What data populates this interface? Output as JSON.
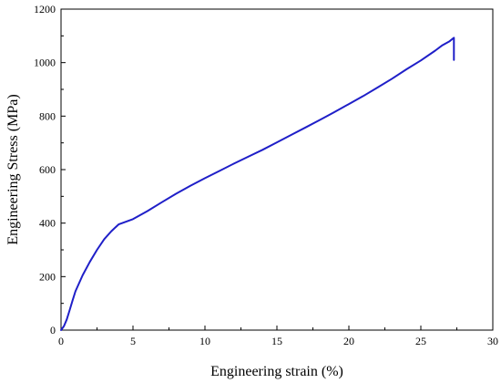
{
  "chart_data": {
    "type": "line",
    "title": "",
    "xlabel": "Engineering strain (%)",
    "ylabel": "Engineering Stress (MPa)",
    "xlim": [
      0,
      30
    ],
    "ylim": [
      0,
      1200
    ],
    "x_ticks": [
      0,
      5,
      10,
      15,
      20,
      25,
      30
    ],
    "y_ticks": [
      0,
      200,
      400,
      600,
      800,
      1000,
      1200
    ],
    "grid": false,
    "legend": "none",
    "colors": {
      "series": "#1f1fc8",
      "axis": "#000000"
    },
    "series": [
      {
        "x": [
          0,
          0.2,
          0.4,
          0.6,
          0.8,
          1.0,
          1.5,
          2.0,
          2.5,
          3.0,
          3.5,
          4.0,
          4.5,
          5.0,
          6.0,
          7.0,
          8.0,
          9.0,
          10.0,
          11.0,
          12.0,
          13.0,
          14.0,
          15.0,
          16.0,
          17.0,
          18.0,
          19.0,
          20.0,
          21.0,
          22.0,
          23.0,
          24.0,
          25.0,
          26.0,
          26.5,
          27.0,
          27.3,
          27.3
        ],
        "y": [
          0,
          15,
          40,
          75,
          110,
          145,
          205,
          255,
          300,
          340,
          370,
          395,
          405,
          415,
          445,
          478,
          510,
          540,
          568,
          595,
          622,
          648,
          674,
          702,
          730,
          758,
          786,
          815,
          845,
          875,
          907,
          940,
          975,
          1008,
          1045,
          1065,
          1080,
          1093,
          1010
        ]
      }
    ]
  }
}
